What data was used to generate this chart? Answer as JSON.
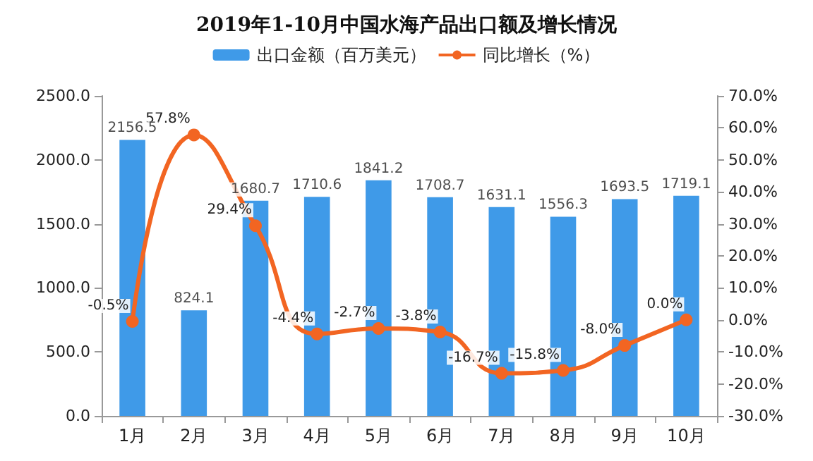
{
  "chart_data": {
    "type": "bar",
    "title": "2019年1-10月中国水海产品出口额及增长情况",
    "categories": [
      "1月",
      "2月",
      "3月",
      "4月",
      "5月",
      "6月",
      "7月",
      "8月",
      "9月",
      "10月"
    ],
    "series": [
      {
        "name": "出口金额（百万美元）",
        "type": "bar",
        "color": "#3f9ae8",
        "values": [
          2156.5,
          824.1,
          1680.7,
          1710.6,
          1841.2,
          1708.7,
          1631.1,
          1556.3,
          1693.5,
          1719.1
        ],
        "value_labels": [
          "2156.5",
          "824.1",
          "1680.7",
          "1710.6",
          "1841.2",
          "1708.7",
          "1631.1",
          "1556.3",
          "1693.5",
          "1719.1"
        ]
      },
      {
        "name": "同比增长（%）",
        "type": "line",
        "axis": "y2",
        "color": "#f26522",
        "values": [
          -0.5,
          57.8,
          29.4,
          -4.4,
          -2.7,
          -3.8,
          -16.7,
          -15.8,
          -8.0,
          0.0
        ],
        "value_labels": [
          "-0.5%",
          "57.8%",
          "29.4%",
          "-4.4%",
          "-2.7%",
          "-3.8%",
          "-16.7%",
          "-15.8%",
          "-8.0%",
          "0.0%"
        ]
      }
    ],
    "ylim": [
      0,
      2500
    ],
    "yticks": [
      {
        "value": 0,
        "label": "0.0"
      },
      {
        "value": 500,
        "label": "500.0"
      },
      {
        "value": 1000,
        "label": "1000.0"
      },
      {
        "value": 1500,
        "label": "1500.0"
      },
      {
        "value": 2000,
        "label": "2000.0"
      },
      {
        "value": 2500,
        "label": "2500.0"
      }
    ],
    "y2lim": [
      -30,
      70
    ],
    "y2ticks": [
      {
        "value": -30,
        "label": "-30.0%"
      },
      {
        "value": -20,
        "label": "-20.0%"
      },
      {
        "value": -10,
        "label": "-10.0%"
      },
      {
        "value": 0,
        "label": "0.0%"
      },
      {
        "value": 10,
        "label": "10.0%"
      },
      {
        "value": 20,
        "label": "20.0%"
      },
      {
        "value": 30,
        "label": "30.0%"
      },
      {
        "value": 40,
        "label": "40.0%"
      },
      {
        "value": 50,
        "label": "50.0%"
      },
      {
        "value": 60,
        "label": "60.0%"
      },
      {
        "value": 70,
        "label": "70.0%"
      }
    ],
    "legend": "top",
    "grid": false,
    "marker": "circle",
    "line_style": "solid"
  }
}
